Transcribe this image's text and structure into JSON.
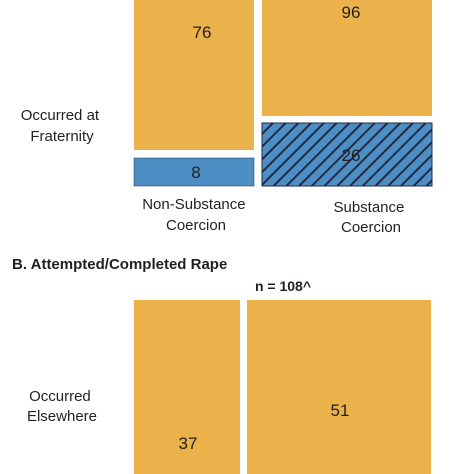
{
  "chart_data": [
    {
      "type": "mosaic",
      "title": "",
      "row_label": "Occurred at Fraternity",
      "columns": [
        "Non-Substance Coercion",
        "Substance Coercion"
      ],
      "cells": [
        {
          "column": "Non-Substance Coercion",
          "row": "Occurred Elsewhere",
          "value": 76,
          "pattern": "solid"
        },
        {
          "column": "Non-Substance Coercion",
          "row": "Occurred at Fraternity",
          "value": 8,
          "pattern": "solid"
        },
        {
          "column": "Substance Coercion",
          "row": "Occurred Elsewhere",
          "value": 96,
          "pattern": "solid"
        },
        {
          "column": "Substance Coercion",
          "row": "Occurred at Fraternity",
          "value": 26,
          "pattern": "hatched"
        }
      ]
    },
    {
      "type": "mosaic",
      "title": "B. Attempted/Completed Rape",
      "n_label": "n = 108^",
      "row_label": "Occurred Elsewhere",
      "cells": [
        {
          "column": "Non-Substance Coercion",
          "row": "Occurred Elsewhere",
          "value": 37,
          "pattern": "solid"
        },
        {
          "column": "Substance Coercion",
          "row": "Occurred Elsewhere",
          "value": 51,
          "pattern": "solid"
        }
      ]
    }
  ],
  "colors": {
    "elsewhere": "#ebb14b",
    "fraternity": "#4d8ec4",
    "hatched_bg": "#4d8ec4",
    "hatch_line": "#1f2a44",
    "text": "#231f20"
  }
}
